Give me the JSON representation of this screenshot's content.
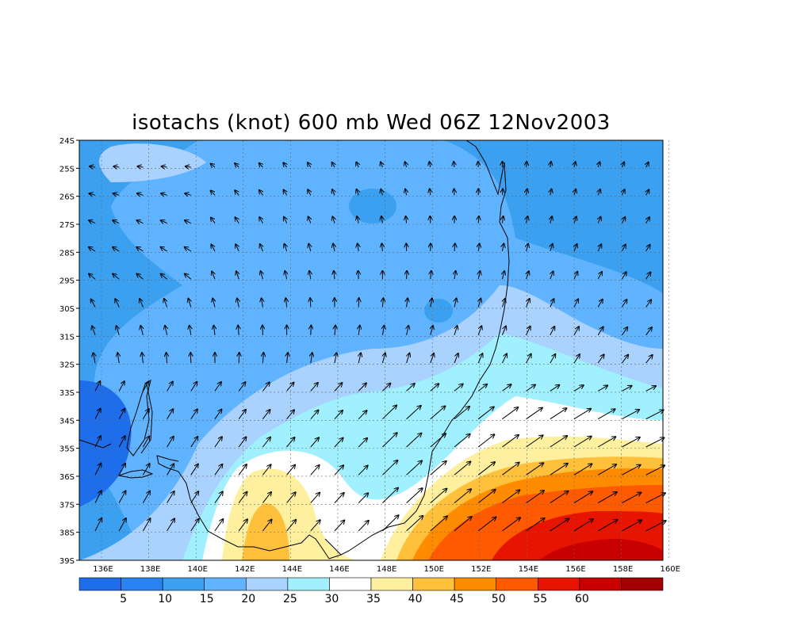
{
  "title": "isotachs (knot) 600 mb Wed 06Z 12Nov2003",
  "lat_labels": [
    "24S",
    "25S",
    "26S",
    "27S",
    "28S",
    "29S",
    "30S",
    "31S",
    "32S",
    "33S",
    "34S",
    "35S",
    "36S",
    "37S",
    "38S",
    "39S"
  ],
  "lon_labels": [
    "136E",
    "138E",
    "140E",
    "142E",
    "144E",
    "146E",
    "148E",
    "150E",
    "152E",
    "154E",
    "156E",
    "158E",
    "160E"
  ],
  "colorbar": {
    "labels": [
      "5",
      "10",
      "15",
      "20",
      "25",
      "30",
      "35",
      "40",
      "45",
      "50",
      "55",
      "60"
    ],
    "colors": [
      "#1e6eeb",
      "#2882f0",
      "#3ca0f0",
      "#60b4ff",
      "#aad2ff",
      "#a0f0ff",
      "#ffffff",
      "#fff0a0",
      "#ffc03c",
      "#ff8c00",
      "#ff5a00",
      "#e61400",
      "#c80000",
      "#a00000"
    ]
  },
  "legend_units": "knot",
  "level": "600 mb",
  "valid_time": "Wed 06Z 12Nov2003"
}
